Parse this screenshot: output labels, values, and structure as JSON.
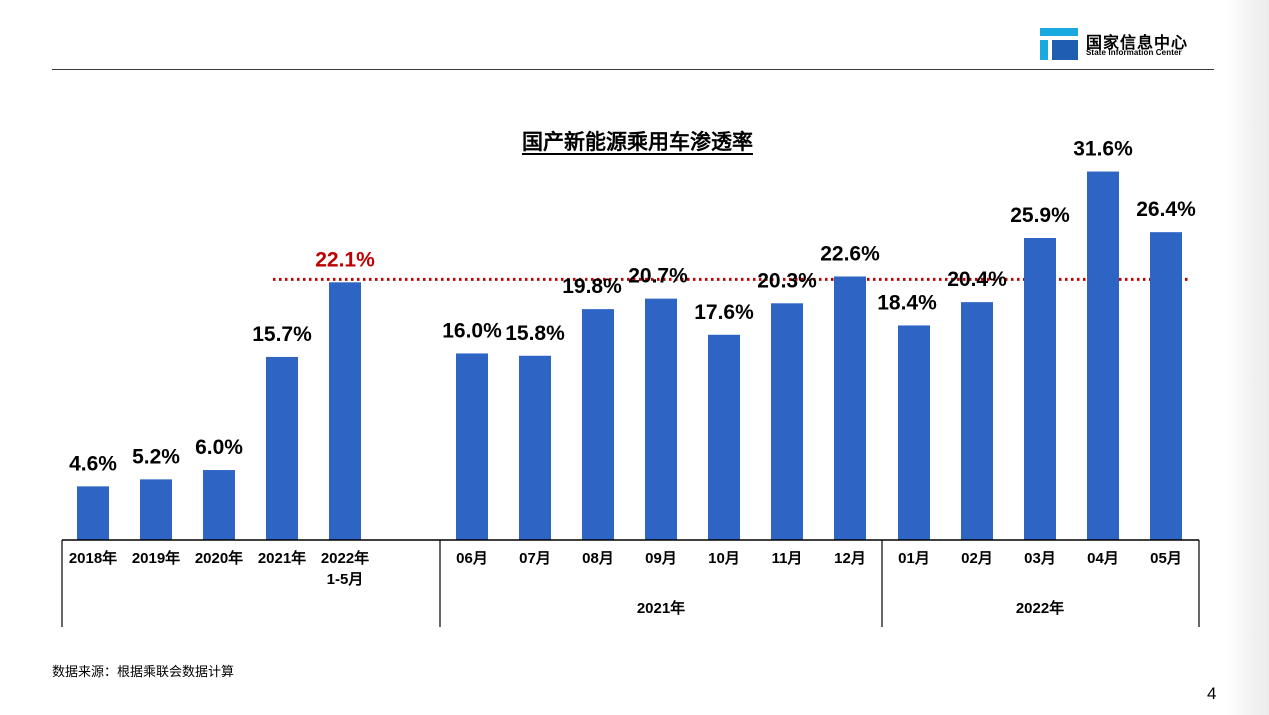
{
  "header": {
    "logo_cn": "国家信息中心",
    "logo_en": "State Information Center"
  },
  "chart_data": {
    "type": "bar",
    "title": "国产新能源乘用车渗透率",
    "xlabel": "",
    "ylabel": "",
    "ylim": [
      0,
      35
    ],
    "categories": [
      "2018年",
      "2019年",
      "2020年",
      "2021年",
      "2022年\n1-5月",
      "06月",
      "07月",
      "08月",
      "09月",
      "10月",
      "11月",
      "12月",
      "01月",
      "02月",
      "03月",
      "04月",
      "05月"
    ],
    "values": [
      4.6,
      5.2,
      6.0,
      15.7,
      22.1,
      16.0,
      15.8,
      19.8,
      20.7,
      17.6,
      20.3,
      22.6,
      18.4,
      20.4,
      25.9,
      31.6,
      26.4
    ],
    "value_labels": [
      "4.6%",
      "5.2%",
      "6.0%",
      "15.7%",
      "22.1%",
      "16.0%",
      "15.8%",
      "19.8%",
      "20.7%",
      "17.6%",
      "20.3%",
      "22.6%",
      "18.4%",
      "20.4%",
      "25.9%",
      "31.6%",
      "26.4%"
    ],
    "highlight_index": 4,
    "group_labels": [
      "2021年",
      "2022年"
    ],
    "reference_line": {
      "value": 22.1,
      "style": "dotted",
      "color": "#c00000"
    },
    "bar_color": "#2e65c5",
    "highlight_label_color": "#c00000",
    "grid": false,
    "legend": "none"
  },
  "footer": {
    "source": "数据来源：根据乘联会数据计算",
    "page_number": "4"
  }
}
